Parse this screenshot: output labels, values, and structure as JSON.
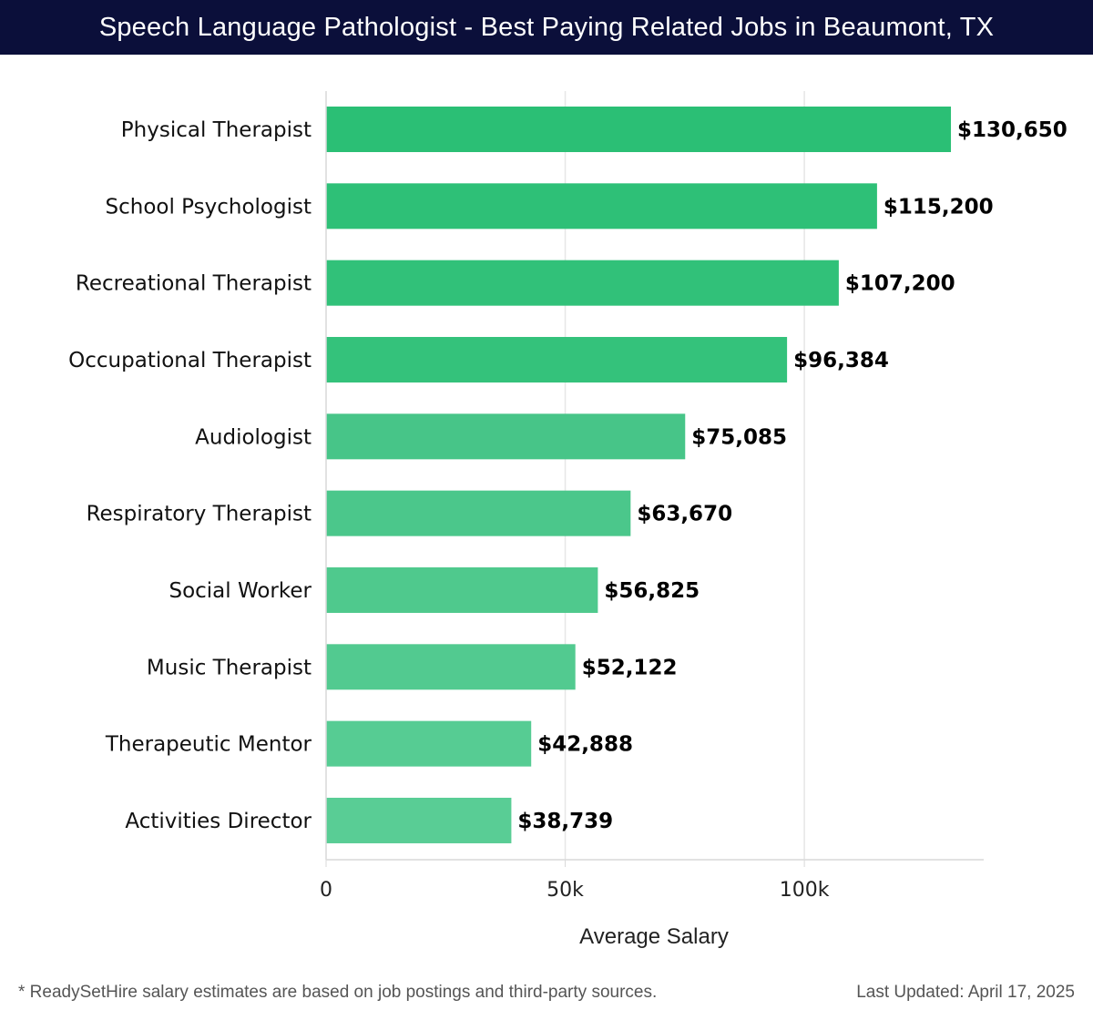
{
  "header": {
    "title": "Speech Language Pathologist - Best Paying Related Jobs in Beaumont, TX"
  },
  "footer": {
    "note": "* ReadySetHire salary estimates are based on job postings and third-party sources.",
    "updated": "Last Updated: April 17, 2025"
  },
  "chart_data": {
    "type": "bar",
    "orientation": "horizontal",
    "title": "Speech Language Pathologist - Best Paying Related Jobs in Beaumont, TX",
    "xlabel": "Average Salary",
    "ylabel": "",
    "xlim": [
      0,
      137500
    ],
    "xticks": [
      0,
      50000,
      100000
    ],
    "xtick_labels": [
      "0",
      "50k",
      "100k"
    ],
    "grid": "vertical",
    "categories": [
      "Physical Therapist",
      "School Psychologist",
      "Recreational Therapist",
      "Occupational Therapist",
      "Audiologist",
      "Respiratory Therapist",
      "Social Worker",
      "Music Therapist",
      "Therapeutic Mentor",
      "Activities Director"
    ],
    "values": [
      130650,
      115200,
      107200,
      96384,
      75085,
      63670,
      56825,
      52122,
      42888,
      38739
    ],
    "value_labels": [
      "$130,650",
      "$115,200",
      "$107,200",
      "$96,384",
      "$75,085",
      "$63,670",
      "$56,825",
      "$52,122",
      "$42,888",
      "$38,739"
    ],
    "bar_colors": [
      "#2bbf75",
      "#2ec077",
      "#31c179",
      "#34c27b",
      "#47c588",
      "#4bc78b",
      "#4fc98d",
      "#52ca90",
      "#56cc93",
      "#59cd95"
    ]
  }
}
